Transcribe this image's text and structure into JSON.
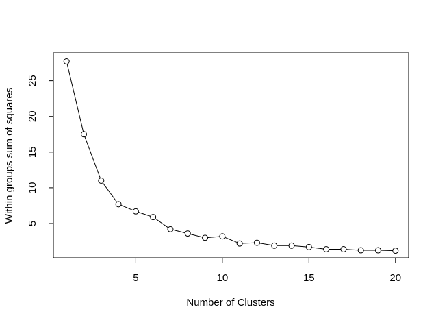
{
  "chart_data": {
    "type": "line",
    "xlabel": "Number of Clusters",
    "ylabel": "Within groups sum of squares",
    "x": [
      1,
      2,
      3,
      4,
      5,
      6,
      7,
      8,
      9,
      10,
      11,
      12,
      13,
      14,
      15,
      16,
      17,
      18,
      19,
      20
    ],
    "values": [
      27.7,
      17.5,
      11.0,
      7.7,
      6.7,
      5.9,
      4.2,
      3.6,
      3.0,
      3.2,
      2.2,
      2.3,
      1.9,
      1.9,
      1.7,
      1.4,
      1.4,
      1.25,
      1.25,
      1.2
    ],
    "color": "#000000",
    "xlim": [
      0.24,
      20.76
    ],
    "xticks": [
      5,
      10,
      15,
      20
    ],
    "ylim": [
      0.2,
      28.9
    ],
    "yticks": [
      5,
      10,
      15,
      20,
      25
    ]
  }
}
